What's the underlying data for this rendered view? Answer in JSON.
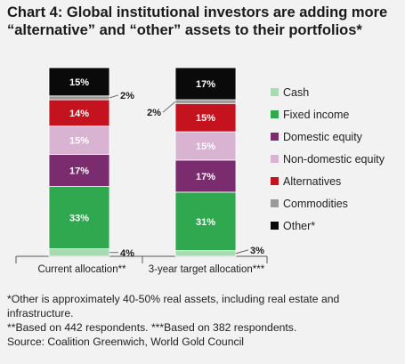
{
  "title": "Chart 4: Global institutional investors are adding more “alternative” and “other” assets to their portfolios*",
  "chart_data": {
    "type": "bar",
    "stacked": true,
    "categories": [
      "Current allocation**",
      "3-year target allocation***"
    ],
    "series": [
      {
        "name": "Cash",
        "values": [
          4,
          3
        ],
        "labels": [
          "4%",
          "3%"
        ],
        "color": "#a8dbb1"
      },
      {
        "name": "Fixed income",
        "values": [
          33,
          31
        ],
        "labels": [
          "33%",
          "31%"
        ],
        "color": "#2fa84f"
      },
      {
        "name": "Domestic equity",
        "values": [
          17,
          17
        ],
        "labels": [
          "17%",
          "17%"
        ],
        "color": "#7b2c6f"
      },
      {
        "name": "Non-domestic equity",
        "values": [
          15,
          15
        ],
        "labels": [
          "15%",
          "15%"
        ],
        "color": "#d9b3d2"
      },
      {
        "name": "Alternatives",
        "values": [
          14,
          15
        ],
        "labels": [
          "14%",
          "15%"
        ],
        "color": "#c4121f"
      },
      {
        "name": "Commodities",
        "values": [
          2,
          2
        ],
        "labels": [
          "2%",
          "2%"
        ],
        "color": "#9a9a9a"
      },
      {
        "name": "Other*",
        "values": [
          15,
          17
        ],
        "labels": [
          "15%",
          "17%"
        ],
        "color": "#0a0a0a"
      }
    ],
    "legend_position": "right",
    "grid": false
  },
  "footnotes": [
    "*Other is approximately 40-50% real assets, including real estate and infrastructure.",
    "**Based on 442 respondents. ***Based on 382 respondents.",
    "Source: Coalition Greenwich, World Gold Council"
  ]
}
